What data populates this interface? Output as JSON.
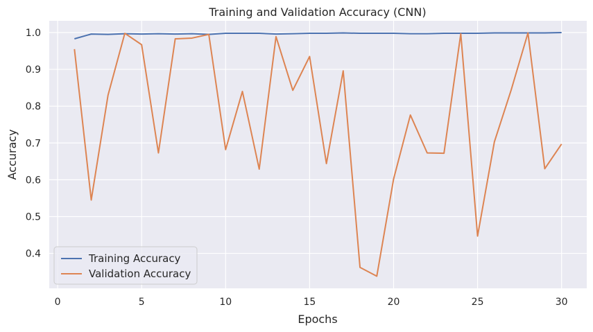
{
  "chart_data": {
    "type": "line",
    "title": "Training and Validation Accuracy (CNN)",
    "xlabel": "Epochs",
    "ylabel": "Accuracy",
    "xlim": [
      -0.5,
      31.5
    ],
    "ylim": [
      0.305,
      1.032
    ],
    "xticks": [
      0,
      5,
      10,
      15,
      20,
      25,
      30
    ],
    "yticks": [
      0.4,
      0.5,
      0.6,
      0.7,
      0.8,
      0.9,
      1.0
    ],
    "grid": true,
    "background": "#eaeaf2",
    "legend_position": "lower-left",
    "x": [
      1,
      2,
      3,
      4,
      5,
      6,
      7,
      8,
      9,
      10,
      11,
      12,
      13,
      14,
      15,
      16,
      17,
      18,
      19,
      20,
      21,
      22,
      23,
      24,
      25,
      26,
      27,
      28,
      29,
      30
    ],
    "series": [
      {
        "name": "Training Accuracy",
        "color": "#4c72b0",
        "values": [
          0.983,
          0.996,
          0.995,
          0.997,
          0.996,
          0.997,
          0.996,
          0.997,
          0.995,
          0.998,
          0.998,
          0.998,
          0.996,
          0.997,
          0.998,
          0.998,
          0.999,
          0.998,
          0.998,
          0.998,
          0.997,
          0.997,
          0.998,
          0.998,
          0.998,
          0.999,
          0.999,
          0.999,
          0.999,
          1.0
        ]
      },
      {
        "name": "Validation Accuracy",
        "color": "#dd8452",
        "values": [
          0.955,
          0.545,
          0.83,
          0.998,
          0.967,
          0.673,
          0.983,
          0.985,
          0.995,
          0.682,
          0.84,
          0.629,
          0.989,
          0.843,
          0.935,
          0.644,
          0.896,
          0.362,
          0.338,
          0.602,
          0.776,
          0.673,
          0.672,
          0.997,
          0.447,
          0.703,
          0.844,
          0.999,
          0.63,
          0.697
        ]
      }
    ]
  }
}
